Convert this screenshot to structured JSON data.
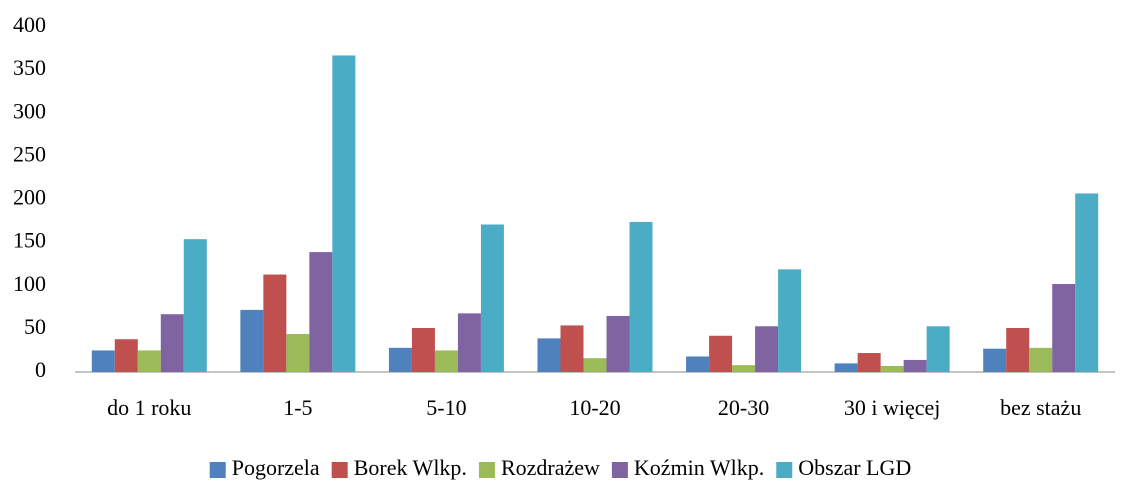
{
  "chart_data": {
    "type": "bar",
    "categories": [
      "do 1 roku",
      "1-5",
      "5-10",
      "10-20",
      "20-30",
      "30 i więcej",
      "bez stażu"
    ],
    "series": [
      {
        "name": "Pogorzela",
        "color": "#4f81bd",
        "values": [
          25,
          72,
          28,
          39,
          18,
          10,
          27
        ]
      },
      {
        "name": "Borek Wlkp.",
        "color": "#c0504d",
        "values": [
          38,
          113,
          51,
          54,
          42,
          22,
          51
        ]
      },
      {
        "name": "Rozdrażew",
        "color": "#9bbb59",
        "values": [
          25,
          44,
          25,
          16,
          8,
          7,
          28
        ]
      },
      {
        "name": "Koźmin Wlkp.",
        "color": "#8064a2",
        "values": [
          67,
          139,
          68,
          65,
          53,
          14,
          102
        ]
      },
      {
        "name": "Obszar LGD",
        "color": "#4bacc6",
        "values": [
          154,
          367,
          171,
          174,
          119,
          53,
          207
        ]
      }
    ],
    "ylim": [
      0,
      400
    ],
    "yticks": [
      0,
      50,
      100,
      150,
      200,
      250,
      300,
      350,
      400
    ],
    "grid": false,
    "legend": "bottom"
  }
}
